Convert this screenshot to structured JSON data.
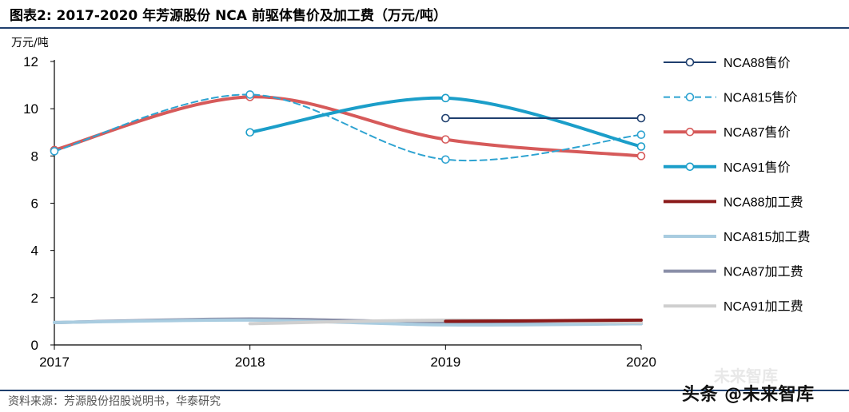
{
  "header": {
    "title": "图表2:   2017-2020 年芳源股份 NCA 前驱体售价及加工费（万元/吨）"
  },
  "footer": {
    "source": "资料来源：芳源股份招股说明书，华泰研究",
    "watermark_top": "未来智库",
    "watermark_main": "头条 @未来智库"
  },
  "chart_data": {
    "type": "line",
    "title": "2017-2020 年芳源股份 NCA 前驱体售价及加工费（万元/吨）",
    "xlabel": "",
    "ylabel": "万元/吨",
    "x": [
      "2017",
      "2018",
      "2019",
      "2020"
    ],
    "ylim": [
      0,
      12
    ],
    "yticks": [
      0,
      2,
      4,
      6,
      8,
      10,
      12
    ],
    "legend_position": "right",
    "series": [
      {
        "name": "NCA88售价",
        "values": [
          null,
          null,
          9.6,
          9.6
        ],
        "color": "#1f3f6e",
        "style": "solid",
        "width": 2,
        "marker": true,
        "smooth": false
      },
      {
        "name": "NCA815售价",
        "values": [
          8.2,
          10.6,
          7.85,
          8.9
        ],
        "color": "#2ea3d1",
        "style": "dashed",
        "width": 2,
        "marker": true,
        "smooth": true
      },
      {
        "name": "NCA87售价",
        "values": [
          8.25,
          10.5,
          8.7,
          8.0
        ],
        "color": "#d65a5a",
        "style": "solid",
        "width": 4,
        "marker": true,
        "smooth": true
      },
      {
        "name": "NCA91售价",
        "values": [
          null,
          9.0,
          10.45,
          8.4
        ],
        "color": "#1b9ec9",
        "style": "solid",
        "width": 4,
        "marker": true,
        "smooth": true
      },
      {
        "name": "NCA88加工费",
        "values": [
          null,
          null,
          1.0,
          1.05
        ],
        "color": "#8b1a1a",
        "style": "solid",
        "width": 4,
        "marker": false,
        "smooth": false
      },
      {
        "name": "NCA815加工费",
        "values": [
          0.95,
          1.05,
          0.85,
          0.9
        ],
        "color": "#a9cce0",
        "style": "solid",
        "width": 4,
        "marker": false,
        "smooth": true
      },
      {
        "name": "NCA87加工费",
        "values": [
          0.95,
          1.1,
          0.95,
          0.9
        ],
        "color": "#8a8fa8",
        "style": "solid",
        "width": 4,
        "marker": false,
        "smooth": true
      },
      {
        "name": "NCA91加工费",
        "values": [
          null,
          0.9,
          1.05,
          0.95
        ],
        "color": "#cfcfcf",
        "style": "solid",
        "width": 4,
        "marker": false,
        "smooth": true
      }
    ]
  }
}
